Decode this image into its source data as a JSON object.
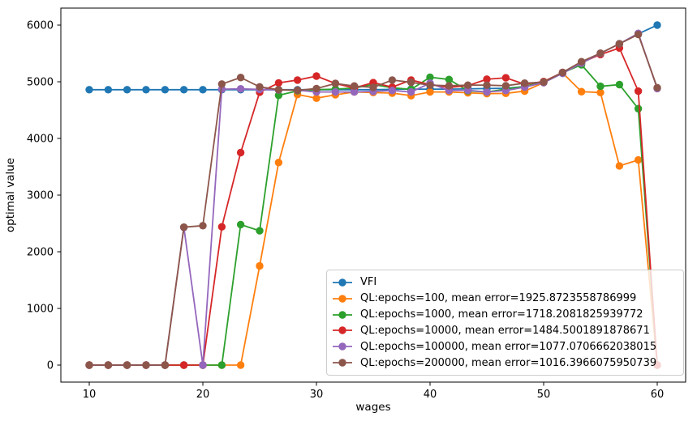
{
  "figure": {
    "background": "#ffffff",
    "spine_color": "#000000",
    "legend_border_color": "#cccccc",
    "legend_background": "rgba(255,255,255,0.8)"
  },
  "chart_data": {
    "type": "line",
    "title": "",
    "xlabel": "wages",
    "ylabel": "optimal value",
    "grid": false,
    "legend_position": "lower right",
    "marker": "o",
    "xlim": [
      7.5,
      62.5
    ],
    "ylim": [
      -300,
      6300
    ],
    "xticks": [
      10,
      20,
      30,
      40,
      50,
      60
    ],
    "yticks": [
      0,
      1000,
      2000,
      3000,
      4000,
      5000,
      6000
    ],
    "x": [
      10,
      11.67,
      13.33,
      15,
      16.67,
      18.33,
      20,
      21.67,
      23.33,
      25,
      26.67,
      28.33,
      30,
      31.67,
      33.33,
      35,
      36.67,
      38.33,
      40,
      41.67,
      43.33,
      45,
      46.67,
      48.33,
      50,
      51.67,
      53.33,
      55,
      56.67,
      58.33,
      60
    ],
    "series": [
      {
        "label": "VFI",
        "color": "#1f77b4",
        "values": [
          4860,
          4860,
          4860,
          4860,
          4860,
          4860,
          4860,
          4860,
          4860,
          4860,
          4860,
          4860,
          4860,
          4860,
          4860,
          4860,
          4865,
          4870,
          4870,
          4870,
          4875,
          4880,
          4885,
          4915,
          4985,
          5150,
          5325,
          5500,
          5670,
          5845,
          6000
        ]
      },
      {
        "label": "QL:epochs=100, mean error=1925.8723558786999",
        "color": "#ff7f0e",
        "values": [
          0,
          0,
          0,
          0,
          0,
          0,
          0,
          0,
          0,
          1750,
          3575,
          4775,
          4710,
          4770,
          4820,
          4810,
          4800,
          4755,
          4820,
          4820,
          4805,
          4790,
          4795,
          4835,
          4985,
          5155,
          4825,
          4810,
          3515,
          3620,
          0
        ]
      },
      {
        "label": "QL:epochs=1000, mean error=1718.2081825939772",
        "color": "#2ca02c",
        "values": [
          0,
          0,
          0,
          0,
          0,
          0,
          0,
          0,
          2480,
          2370,
          4760,
          4840,
          4860,
          4870,
          4890,
          4950,
          4895,
          4865,
          5080,
          5040,
          4840,
          4820,
          4870,
          4920,
          5000,
          5160,
          5300,
          4920,
          4950,
          4525,
          0
        ]
      },
      {
        "label": "QL:epochs=10000, mean error=1484.5001891878671",
        "color": "#d62728",
        "values": [
          0,
          0,
          0,
          0,
          0,
          0,
          0,
          2440,
          3750,
          4815,
          4980,
          5030,
          5100,
          4970,
          4890,
          4985,
          4905,
          5030,
          4950,
          4900,
          4930,
          5045,
          5070,
          4955,
          5005,
          5165,
          5340,
          5480,
          5595,
          4835,
          0
        ]
      },
      {
        "label": "QL:epochs=100000, mean error=1077.0706662038015",
        "color": "#9467bd",
        "values": [
          0,
          0,
          0,
          0,
          0,
          2430,
          0,
          4870,
          4875,
          4865,
          4855,
          4850,
          4820,
          4820,
          4820,
          4830,
          4845,
          4820,
          4975,
          4845,
          4850,
          4820,
          4845,
          4905,
          4985,
          5150,
          5330,
          5500,
          5670,
          5855,
          4880
        ]
      },
      {
        "label": "QL:epochs=200000, mean error=1016.3966075950739",
        "color": "#8c564b",
        "values": [
          0,
          0,
          0,
          0,
          0,
          2435,
          2460,
          4960,
          5075,
          4910,
          4860,
          4850,
          4880,
          4970,
          4925,
          4900,
          5030,
          4990,
          4940,
          4930,
          4940,
          4940,
          4930,
          4975,
          4995,
          5165,
          5355,
          5505,
          5670,
          5835,
          4895
        ]
      }
    ]
  }
}
